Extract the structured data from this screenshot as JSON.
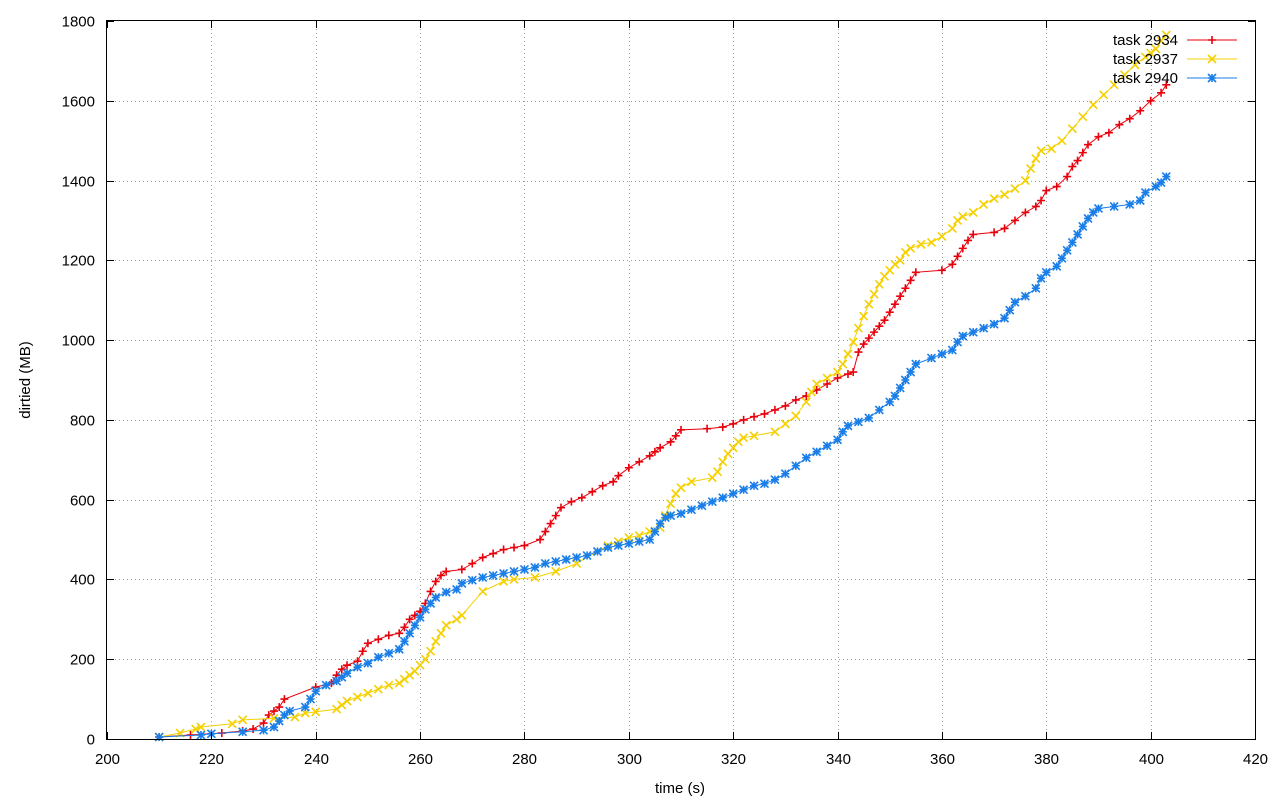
{
  "chart_data": {
    "type": "line",
    "title": "",
    "xlabel": "time (s)",
    "ylabel": "dirtied (MB)",
    "xlim": [
      200,
      420
    ],
    "ylim": [
      0,
      1800
    ],
    "x_ticks": [
      200,
      220,
      240,
      260,
      280,
      300,
      320,
      340,
      360,
      380,
      400,
      420
    ],
    "y_ticks": [
      0,
      200,
      400,
      600,
      800,
      1000,
      1200,
      1400,
      1600,
      1800
    ],
    "grid": true,
    "legend_position": "top-right",
    "series": [
      {
        "name": "task 2934",
        "color": "#e8000b",
        "marker": "plus",
        "points": [
          [
            210,
            5
          ],
          [
            216,
            10
          ],
          [
            222,
            15
          ],
          [
            226,
            20
          ],
          [
            228,
            25
          ],
          [
            230,
            40
          ],
          [
            231,
            60
          ],
          [
            232,
            70
          ],
          [
            233,
            80
          ],
          [
            234,
            100
          ],
          [
            240,
            130
          ],
          [
            243,
            140
          ],
          [
            244,
            160
          ],
          [
            245,
            175
          ],
          [
            246,
            185
          ],
          [
            248,
            195
          ],
          [
            249,
            220
          ],
          [
            250,
            240
          ],
          [
            252,
            250
          ],
          [
            254,
            260
          ],
          [
            256,
            265
          ],
          [
            257,
            280
          ],
          [
            258,
            300
          ],
          [
            259,
            310
          ],
          [
            260,
            320
          ],
          [
            261,
            340
          ],
          [
            262,
            370
          ],
          [
            263,
            395
          ],
          [
            264,
            410
          ],
          [
            265,
            420
          ],
          [
            268,
            425
          ],
          [
            270,
            440
          ],
          [
            272,
            455
          ],
          [
            274,
            465
          ],
          [
            276,
            475
          ],
          [
            278,
            480
          ],
          [
            280,
            485
          ],
          [
            283,
            500
          ],
          [
            284,
            520
          ],
          [
            285,
            540
          ],
          [
            286,
            560
          ],
          [
            287,
            580
          ],
          [
            289,
            595
          ],
          [
            291,
            605
          ],
          [
            293,
            620
          ],
          [
            295,
            635
          ],
          [
            297,
            645
          ],
          [
            298,
            660
          ],
          [
            300,
            680
          ],
          [
            302,
            695
          ],
          [
            304,
            710
          ],
          [
            305,
            720
          ],
          [
            306,
            730
          ],
          [
            308,
            745
          ],
          [
            309,
            760
          ],
          [
            310,
            775
          ],
          [
            315,
            778
          ],
          [
            318,
            782
          ],
          [
            320,
            790
          ],
          [
            322,
            800
          ],
          [
            324,
            808
          ],
          [
            326,
            815
          ],
          [
            328,
            825
          ],
          [
            330,
            835
          ],
          [
            332,
            850
          ],
          [
            334,
            860
          ],
          [
            336,
            875
          ],
          [
            338,
            890
          ],
          [
            340,
            905
          ],
          [
            342,
            915
          ],
          [
            343,
            920
          ],
          [
            344,
            970
          ],
          [
            345,
            990
          ],
          [
            346,
            1005
          ],
          [
            347,
            1020
          ],
          [
            348,
            1035
          ],
          [
            349,
            1050
          ],
          [
            350,
            1070
          ],
          [
            351,
            1090
          ],
          [
            352,
            1110
          ],
          [
            353,
            1130
          ],
          [
            354,
            1150
          ],
          [
            355,
            1170
          ],
          [
            360,
            1175
          ],
          [
            362,
            1190
          ],
          [
            363,
            1210
          ],
          [
            364,
            1230
          ],
          [
            365,
            1250
          ],
          [
            366,
            1265
          ],
          [
            370,
            1270
          ],
          [
            372,
            1280
          ],
          [
            374,
            1300
          ],
          [
            376,
            1320
          ],
          [
            378,
            1335
          ],
          [
            379,
            1350
          ],
          [
            380,
            1375
          ],
          [
            382,
            1385
          ],
          [
            384,
            1410
          ],
          [
            385,
            1435
          ],
          [
            386,
            1450
          ],
          [
            387,
            1470
          ],
          [
            388,
            1490
          ],
          [
            390,
            1510
          ],
          [
            392,
            1520
          ],
          [
            394,
            1540
          ],
          [
            396,
            1555
          ],
          [
            398,
            1575
          ],
          [
            400,
            1600
          ],
          [
            402,
            1620
          ],
          [
            403,
            1640
          ]
        ]
      },
      {
        "name": "task 2937",
        "color": "#f5d000",
        "marker": "cross",
        "points": [
          [
            210,
            5
          ],
          [
            214,
            15
          ],
          [
            217,
            25
          ],
          [
            218,
            30
          ],
          [
            224,
            38
          ],
          [
            226,
            48
          ],
          [
            232,
            52
          ],
          [
            236,
            55
          ],
          [
            238,
            65
          ],
          [
            240,
            68
          ],
          [
            244,
            75
          ],
          [
            245,
            85
          ],
          [
            246,
            95
          ],
          [
            248,
            105
          ],
          [
            250,
            115
          ],
          [
            252,
            125
          ],
          [
            254,
            135
          ],
          [
            256,
            140
          ],
          [
            257,
            150
          ],
          [
            258,
            160
          ],
          [
            259,
            170
          ],
          [
            260,
            185
          ],
          [
            261,
            200
          ],
          [
            262,
            220
          ],
          [
            263,
            245
          ],
          [
            264,
            265
          ],
          [
            265,
            285
          ],
          [
            267,
            300
          ],
          [
            268,
            310
          ],
          [
            272,
            370
          ],
          [
            276,
            395
          ],
          [
            278,
            400
          ],
          [
            282,
            405
          ],
          [
            286,
            420
          ],
          [
            290,
            440
          ],
          [
            294,
            470
          ],
          [
            296,
            485
          ],
          [
            298,
            495
          ],
          [
            300,
            505
          ],
          [
            302,
            510
          ],
          [
            304,
            520
          ],
          [
            306,
            530
          ],
          [
            307,
            560
          ],
          [
            308,
            590
          ],
          [
            309,
            615
          ],
          [
            310,
            630
          ],
          [
            312,
            645
          ],
          [
            316,
            655
          ],
          [
            317,
            670
          ],
          [
            318,
            695
          ],
          [
            319,
            715
          ],
          [
            320,
            730
          ],
          [
            321,
            745
          ],
          [
            322,
            755
          ],
          [
            324,
            760
          ],
          [
            328,
            770
          ],
          [
            330,
            790
          ],
          [
            332,
            810
          ],
          [
            334,
            845
          ],
          [
            335,
            870
          ],
          [
            336,
            890
          ],
          [
            338,
            905
          ],
          [
            340,
            920
          ],
          [
            341,
            940
          ],
          [
            342,
            965
          ],
          [
            343,
            995
          ],
          [
            344,
            1030
          ],
          [
            345,
            1060
          ],
          [
            346,
            1090
          ],
          [
            347,
            1115
          ],
          [
            348,
            1140
          ],
          [
            349,
            1160
          ],
          [
            350,
            1175
          ],
          [
            351,
            1190
          ],
          [
            352,
            1200
          ],
          [
            353,
            1220
          ],
          [
            354,
            1230
          ],
          [
            356,
            1240
          ],
          [
            358,
            1245
          ],
          [
            360,
            1260
          ],
          [
            362,
            1280
          ],
          [
            363,
            1300
          ],
          [
            364,
            1310
          ],
          [
            366,
            1320
          ],
          [
            368,
            1340
          ],
          [
            370,
            1355
          ],
          [
            372,
            1365
          ],
          [
            374,
            1380
          ],
          [
            376,
            1400
          ],
          [
            377,
            1430
          ],
          [
            378,
            1455
          ],
          [
            379,
            1475
          ],
          [
            381,
            1480
          ],
          [
            383,
            1500
          ],
          [
            385,
            1530
          ],
          [
            387,
            1560
          ],
          [
            389,
            1590
          ],
          [
            391,
            1615
          ],
          [
            393,
            1640
          ],
          [
            395,
            1665
          ],
          [
            397,
            1690
          ],
          [
            399,
            1710
          ],
          [
            400,
            1720
          ],
          [
            401,
            1730
          ],
          [
            402,
            1750
          ],
          [
            403,
            1765
          ]
        ]
      },
      {
        "name": "task 2940",
        "color": "#1a7ee8",
        "marker": "star",
        "points": [
          [
            210,
            5
          ],
          [
            218,
            10
          ],
          [
            220,
            13
          ],
          [
            226,
            18
          ],
          [
            230,
            22
          ],
          [
            232,
            30
          ],
          [
            233,
            45
          ],
          [
            234,
            60
          ],
          [
            235,
            70
          ],
          [
            238,
            80
          ],
          [
            239,
            100
          ],
          [
            240,
            120
          ],
          [
            242,
            135
          ],
          [
            244,
            145
          ],
          [
            245,
            155
          ],
          [
            246,
            165
          ],
          [
            248,
            180
          ],
          [
            250,
            190
          ],
          [
            252,
            205
          ],
          [
            254,
            215
          ],
          [
            256,
            225
          ],
          [
            257,
            245
          ],
          [
            258,
            265
          ],
          [
            259,
            285
          ],
          [
            260,
            305
          ],
          [
            261,
            325
          ],
          [
            262,
            340
          ],
          [
            263,
            355
          ],
          [
            265,
            368
          ],
          [
            267,
            375
          ],
          [
            268,
            390
          ],
          [
            270,
            398
          ],
          [
            272,
            405
          ],
          [
            274,
            410
          ],
          [
            276,
            415
          ],
          [
            278,
            420
          ],
          [
            280,
            425
          ],
          [
            282,
            430
          ],
          [
            284,
            440
          ],
          [
            286,
            445
          ],
          [
            288,
            450
          ],
          [
            290,
            455
          ],
          [
            292,
            460
          ],
          [
            294,
            470
          ],
          [
            296,
            480
          ],
          [
            298,
            485
          ],
          [
            300,
            490
          ],
          [
            302,
            495
          ],
          [
            304,
            500
          ],
          [
            305,
            520
          ],
          [
            306,
            540
          ],
          [
            307,
            555
          ],
          [
            308,
            560
          ],
          [
            310,
            565
          ],
          [
            312,
            575
          ],
          [
            314,
            585
          ],
          [
            316,
            595
          ],
          [
            318,
            605
          ],
          [
            320,
            615
          ],
          [
            322,
            625
          ],
          [
            324,
            635
          ],
          [
            326,
            640
          ],
          [
            328,
            650
          ],
          [
            330,
            665
          ],
          [
            332,
            685
          ],
          [
            334,
            705
          ],
          [
            336,
            720
          ],
          [
            338,
            735
          ],
          [
            340,
            750
          ],
          [
            341,
            770
          ],
          [
            342,
            785
          ],
          [
            344,
            795
          ],
          [
            346,
            805
          ],
          [
            348,
            825
          ],
          [
            350,
            845
          ],
          [
            351,
            860
          ],
          [
            352,
            880
          ],
          [
            353,
            900
          ],
          [
            354,
            920
          ],
          [
            355,
            940
          ],
          [
            358,
            955
          ],
          [
            360,
            965
          ],
          [
            362,
            975
          ],
          [
            363,
            995
          ],
          [
            364,
            1010
          ],
          [
            366,
            1020
          ],
          [
            368,
            1030
          ],
          [
            370,
            1040
          ],
          [
            372,
            1055
          ],
          [
            373,
            1075
          ],
          [
            374,
            1095
          ],
          [
            376,
            1110
          ],
          [
            378,
            1130
          ],
          [
            379,
            1155
          ],
          [
            380,
            1170
          ],
          [
            382,
            1185
          ],
          [
            383,
            1205
          ],
          [
            384,
            1225
          ],
          [
            385,
            1245
          ],
          [
            386,
            1265
          ],
          [
            387,
            1285
          ],
          [
            388,
            1305
          ],
          [
            389,
            1320
          ],
          [
            390,
            1330
          ],
          [
            393,
            1335
          ],
          [
            396,
            1340
          ],
          [
            398,
            1350
          ],
          [
            399,
            1370
          ],
          [
            401,
            1385
          ],
          [
            402,
            1395
          ],
          [
            403,
            1410
          ]
        ]
      }
    ]
  }
}
